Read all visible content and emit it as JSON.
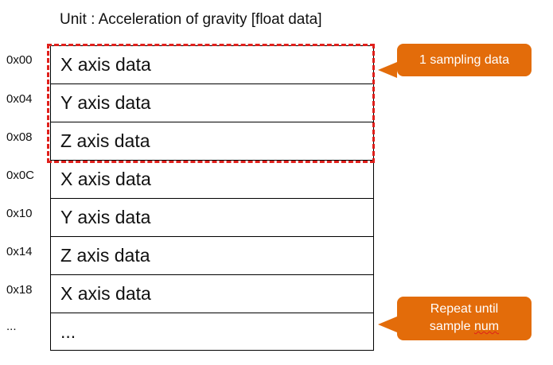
{
  "title": "Unit : Acceleration of gravity [float data]",
  "offsets": [
    "0x00",
    "0x04",
    "0x08",
    "0x0C",
    "0x10",
    "0x14",
    "0x18",
    "..."
  ],
  "rows": [
    "X axis data",
    "Y axis data",
    "Z axis data",
    "X axis data",
    "Y axis data",
    "Z axis data",
    "X axis data",
    "..."
  ],
  "callouts": {
    "sampling": "1 sampling data",
    "repeat_line1": "Repeat until",
    "repeat_line2_word1": "sample",
    "repeat_line2_word2": "num"
  },
  "colors": {
    "callout": "#e36c0a",
    "dashed_border": "#e0201c"
  }
}
